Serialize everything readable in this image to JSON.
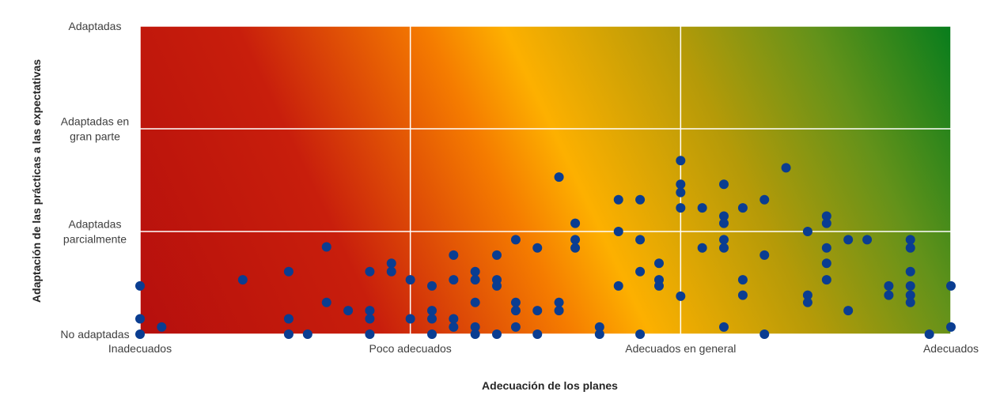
{
  "chart_data": {
    "type": "scatter",
    "title": "",
    "xlabel": "Adecuación de los planes",
    "ylabel": "Adaptación de las prácticas a las expectativas",
    "xlim": [
      0,
      3
    ],
    "ylim": [
      0,
      3
    ],
    "grid": true,
    "legend": "none",
    "background": "diagonal gradient from red (low x, low y) through orange/yellow to green (high x, high y)",
    "x_ticks": [
      {
        "value": 0,
        "label": "Inadecuados"
      },
      {
        "value": 1,
        "label": "Poco adecuados"
      },
      {
        "value": 2,
        "label": "Adecuados en general"
      },
      {
        "value": 3,
        "label": "Adecuados"
      }
    ],
    "y_ticks": [
      {
        "value": 0,
        "label": "No adaptadas"
      },
      {
        "value": 1,
        "label": "Adaptadas parcialmente"
      },
      {
        "value": 2,
        "label": "Adaptadas en gran parte"
      },
      {
        "value": 3,
        "label": "Adaptadas"
      }
    ],
    "series": [
      {
        "name": "",
        "color": "#0a3d91",
        "points": [
          [
            0.0,
            0.47
          ],
          [
            0.0,
            0.15
          ],
          [
            0.0,
            0.0
          ],
          [
            0.08,
            0.07
          ],
          [
            0.38,
            0.53
          ],
          [
            0.55,
            0.61
          ],
          [
            0.55,
            0.15
          ],
          [
            0.55,
            0.0
          ],
          [
            0.62,
            0.0
          ],
          [
            0.69,
            0.85
          ],
          [
            0.69,
            0.31
          ],
          [
            0.77,
            0.23
          ],
          [
            0.85,
            0.61
          ],
          [
            0.85,
            0.23
          ],
          [
            0.85,
            0.15
          ],
          [
            0.85,
            0.0
          ],
          [
            0.93,
            0.69
          ],
          [
            0.93,
            0.61
          ],
          [
            1.0,
            0.53
          ],
          [
            1.0,
            0.15
          ],
          [
            1.08,
            0.47
          ],
          [
            1.08,
            0.23
          ],
          [
            1.08,
            0.15
          ],
          [
            1.08,
            0.0
          ],
          [
            1.16,
            0.77
          ],
          [
            1.16,
            0.53
          ],
          [
            1.16,
            0.15
          ],
          [
            1.16,
            0.07
          ],
          [
            1.24,
            0.61
          ],
          [
            1.24,
            0.53
          ],
          [
            1.24,
            0.31
          ],
          [
            1.24,
            0.07
          ],
          [
            1.24,
            0.0
          ],
          [
            1.32,
            0.77
          ],
          [
            1.32,
            0.53
          ],
          [
            1.32,
            0.47
          ],
          [
            1.32,
            0.0
          ],
          [
            1.39,
            0.92
          ],
          [
            1.39,
            0.31
          ],
          [
            1.39,
            0.23
          ],
          [
            1.39,
            0.07
          ],
          [
            1.47,
            0.84
          ],
          [
            1.47,
            0.23
          ],
          [
            1.47,
            0.0
          ],
          [
            1.55,
            1.53
          ],
          [
            1.55,
            0.31
          ],
          [
            1.55,
            0.23
          ],
          [
            1.61,
            1.08
          ],
          [
            1.61,
            0.92
          ],
          [
            1.61,
            0.84
          ],
          [
            1.7,
            0.07
          ],
          [
            1.7,
            0.0
          ],
          [
            1.77,
            1.31
          ],
          [
            1.77,
            1.0
          ],
          [
            1.77,
            0.47
          ],
          [
            1.85,
            1.31
          ],
          [
            1.85,
            0.92
          ],
          [
            1.85,
            0.61
          ],
          [
            1.85,
            0.0
          ],
          [
            1.92,
            0.69
          ],
          [
            1.92,
            0.53
          ],
          [
            1.92,
            0.47
          ],
          [
            2.0,
            1.69
          ],
          [
            2.0,
            1.46
          ],
          [
            2.0,
            1.38
          ],
          [
            2.0,
            1.23
          ],
          [
            2.0,
            0.37
          ],
          [
            2.08,
            1.23
          ],
          [
            2.08,
            0.84
          ],
          [
            2.16,
            1.46
          ],
          [
            2.16,
            1.15
          ],
          [
            2.16,
            1.08
          ],
          [
            2.16,
            0.92
          ],
          [
            2.16,
            0.84
          ],
          [
            2.16,
            0.07
          ],
          [
            2.23,
            1.23
          ],
          [
            2.23,
            0.53
          ],
          [
            2.23,
            0.38
          ],
          [
            2.31,
            1.31
          ],
          [
            2.31,
            0.77
          ],
          [
            2.31,
            0.0
          ],
          [
            2.39,
            1.62
          ],
          [
            2.47,
            1.0
          ],
          [
            2.47,
            0.38
          ],
          [
            2.47,
            0.31
          ],
          [
            2.54,
            1.15
          ],
          [
            2.54,
            1.08
          ],
          [
            2.54,
            0.84
          ],
          [
            2.54,
            0.69
          ],
          [
            2.54,
            0.53
          ],
          [
            2.62,
            0.92
          ],
          [
            2.62,
            0.23
          ],
          [
            2.69,
            0.92
          ],
          [
            2.85,
            0.92
          ],
          [
            2.85,
            0.84
          ],
          [
            2.85,
            0.61
          ],
          [
            2.85,
            0.47
          ],
          [
            2.85,
            0.38
          ],
          [
            2.85,
            0.31
          ],
          [
            2.77,
            0.47
          ],
          [
            2.77,
            0.38
          ],
          [
            2.92,
            0.0
          ],
          [
            3.0,
            0.47
          ],
          [
            3.0,
            0.07
          ]
        ]
      }
    ]
  }
}
